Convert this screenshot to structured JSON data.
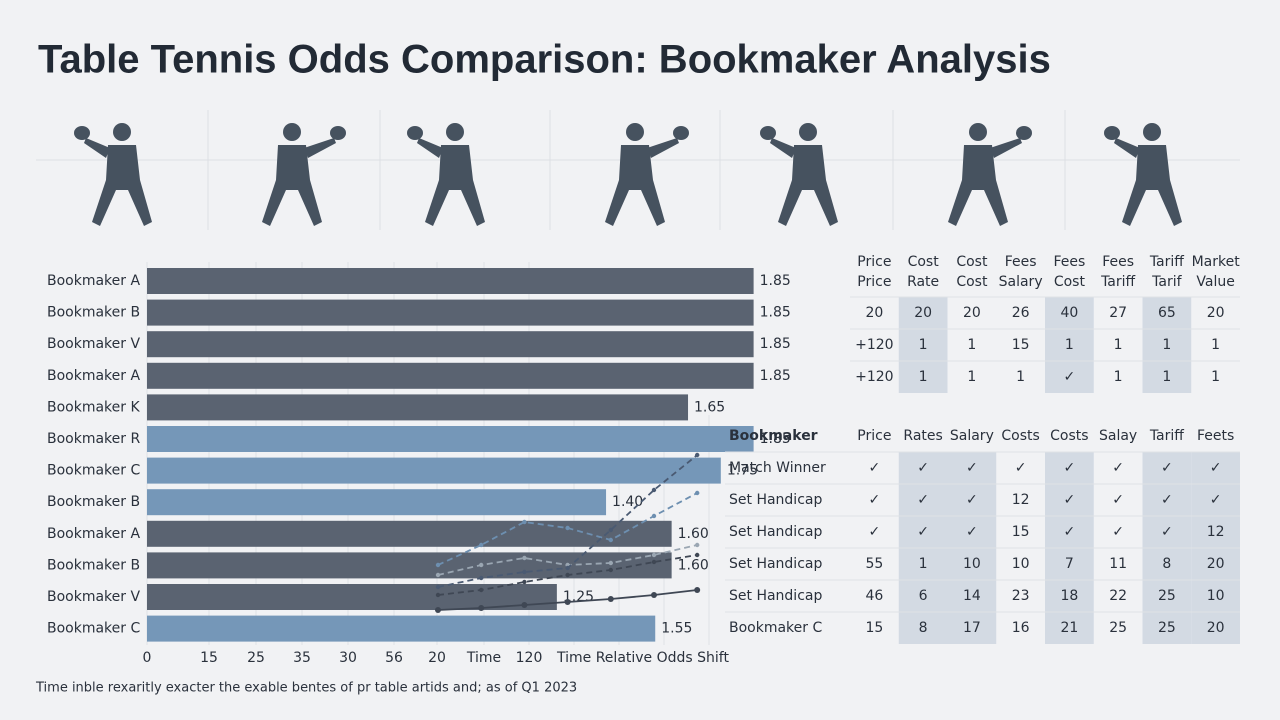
{
  "title": "Table Tennis Odds Comparison: Bookmaker Analysis",
  "footnote": "Time inble rexaritly exacter the exable bentes of pr table artids and; as of Q1 2023",
  "chart_data": [
    {
      "type": "bar",
      "categories": [
        "Bookmaker A",
        "Bookmaker B",
        "Bookmaker V",
        "Bookmaker A",
        "Bookmaker K",
        "Bookmaker R",
        "Bookmaker C",
        "Bookmaker B",
        "Bookmaker A",
        "Bookmaker B",
        "Bookmaker V",
        "Bookmaker C"
      ],
      "values": [
        1.85,
        1.85,
        1.85,
        1.85,
        1.65,
        1.85,
        1.75,
        1.4,
        1.6,
        1.6,
        1.25,
        1.55
      ],
      "value_labels": [
        "1.85",
        "1.85",
        "1.85",
        "1.85",
        "1.65",
        "1.85",
        "1.75",
        "1.40",
        "1.60",
        "1.60",
        "1.25",
        "1.55"
      ],
      "colors": [
        "#5a6371",
        "#5a6371",
        "#5a6371",
        "#5a6371",
        "#5a6371",
        "#7597b8",
        "#7597b8",
        "#7597b8",
        "#5a6371",
        "#5a6371",
        "#5a6371",
        "#7597b8"
      ],
      "xlim": [
        0,
        1.9
      ],
      "x_axis_labels": [
        "0",
        "15",
        "25",
        "35",
        "30",
        "56",
        "20",
        "Time",
        "120",
        "Time Relative Odds Shift"
      ]
    },
    {
      "type": "line",
      "ylim": [
        0,
        10
      ],
      "series": [
        {
          "color": "#3f4754",
          "dash": false,
          "values": [
            1.5,
            1.6,
            1.75,
            1.9,
            2.05,
            2.25,
            2.5
          ]
        },
        {
          "color": "#3f4754",
          "dash": true,
          "values": [
            2.25,
            2.5,
            2.9,
            3.25,
            3.5,
            3.9,
            4.25
          ]
        },
        {
          "color": "#9aa6b2",
          "dash": true,
          "values": [
            3.25,
            3.75,
            4.1,
            3.75,
            3.85,
            4.25,
            4.75
          ]
        },
        {
          "color": "#6d8fb0",
          "dash": true,
          "values": [
            3.75,
            4.75,
            5.9,
            5.6,
            5.0,
            6.2,
            7.35
          ]
        },
        {
          "color": "#4a5a72",
          "dash": true,
          "values": [
            2.65,
            3.1,
            3.4,
            3.6,
            5.5,
            7.5,
            9.25
          ]
        }
      ]
    }
  ],
  "tables": [
    {
      "header": [
        [
          "Price",
          "Price"
        ],
        [
          "Cost",
          "Rate"
        ],
        [
          "Cost",
          "Cost"
        ],
        [
          "Fees",
          "Salary"
        ],
        [
          "Fees",
          "Cost"
        ],
        [
          "Fees",
          "Tariff"
        ],
        [
          "Tariff",
          "Tarif"
        ],
        [
          "Market",
          "Value"
        ]
      ],
      "rows": [
        [
          "20",
          "20",
          "20",
          "26",
          "40",
          "27",
          "65",
          "20"
        ],
        [
          "+120",
          "1",
          "1",
          "15",
          "1",
          "1",
          "1",
          "1"
        ],
        [
          "+120",
          "1",
          "1",
          "1",
          "✓",
          "1",
          "1",
          "1"
        ]
      ]
    },
    {
      "header": [
        "Bookmaker",
        "Price",
        "Rates",
        "Salary",
        "Costs",
        "Costs",
        "Salay",
        "Tariff",
        "Feets"
      ],
      "rows": [
        [
          "Match Winner",
          "✓",
          "✓",
          "✓",
          "✓",
          "✓",
          "✓",
          "✓",
          "✓"
        ],
        [
          "Set Handicap",
          "✓",
          "✓",
          "✓",
          "12",
          "✓",
          "✓",
          "✓",
          "✓"
        ],
        [
          "Set Handicap",
          "✓",
          "✓",
          "✓",
          "15",
          "✓",
          "✓",
          "✓",
          "12"
        ],
        [
          "Set Handicap",
          "55",
          "1",
          "10",
          "10",
          "7",
          "11",
          "8",
          "20"
        ],
        [
          "Set Handicap",
          "46",
          "6",
          "14",
          "23",
          "18",
          "22",
          "25",
          "10"
        ],
        [
          "Bookmaker C",
          "15",
          "8",
          "17",
          "16",
          "21",
          "25",
          "25",
          "20"
        ]
      ]
    }
  ]
}
